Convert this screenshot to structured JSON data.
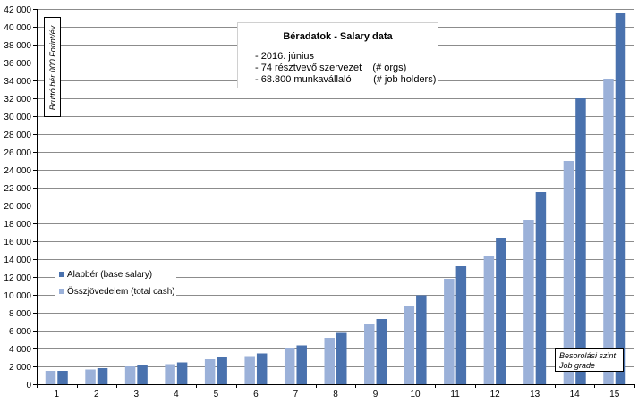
{
  "info": {
    "title": "Béradatok - Salary data",
    "lines": [
      "- 2016. június",
      "- 74 résztvevő szervezet    (# orgs)",
      "- 68.800 munkavállaló        (# job holders)"
    ]
  },
  "legend": {
    "base": "Alapbér (base salary)",
    "total": "Összjövedelem (total cash)"
  },
  "axis_box": {
    "ylabel": "Bruttó bér 000 Forint/év",
    "xlabel_line1": "Besorolási szint",
    "xlabel_line2": "Job grade"
  },
  "colors": {
    "base": "#4a72ae",
    "total": "#9bb1d9",
    "grid": "#8c8c8c",
    "axis": "#000000"
  },
  "chart_data": {
    "type": "bar",
    "categories": [
      "1",
      "2",
      "3",
      "4",
      "5",
      "6",
      "7",
      "8",
      "9",
      "10",
      "11",
      "12",
      "13",
      "14",
      "15"
    ],
    "series": [
      {
        "name": "Összjövedelem (total cash)",
        "values": [
          1500,
          1650,
          2000,
          2250,
          2800,
          3150,
          4000,
          5200,
          6700,
          8700,
          11800,
          14300,
          18400,
          25000,
          34200
        ]
      },
      {
        "name": "Alapbér (base salary)",
        "values": [
          1500,
          1800,
          2100,
          2450,
          3000,
          3450,
          4350,
          5750,
          7300,
          9950,
          13200,
          16400,
          21500,
          32000,
          41500
        ]
      }
    ],
    "title": "Béradatok - Salary data",
    "ylabel": "Bruttó bér 000 Forint/év",
    "xlabel": "Besorolási szint Job grade",
    "ylim": [
      0,
      42000
    ],
    "yticks": [
      "0",
      "2 000",
      "4 000",
      "6 000",
      "8 000",
      "10 000",
      "12 000",
      "14 000",
      "16 000",
      "18 000",
      "20 000",
      "22 000",
      "24 000",
      "26 000",
      "28 000",
      "30 000",
      "32 000",
      "34 000",
      "36 000",
      "38 000",
      "40 000",
      "42 000"
    ],
    "grid": true,
    "legend_position": "left-middle"
  }
}
